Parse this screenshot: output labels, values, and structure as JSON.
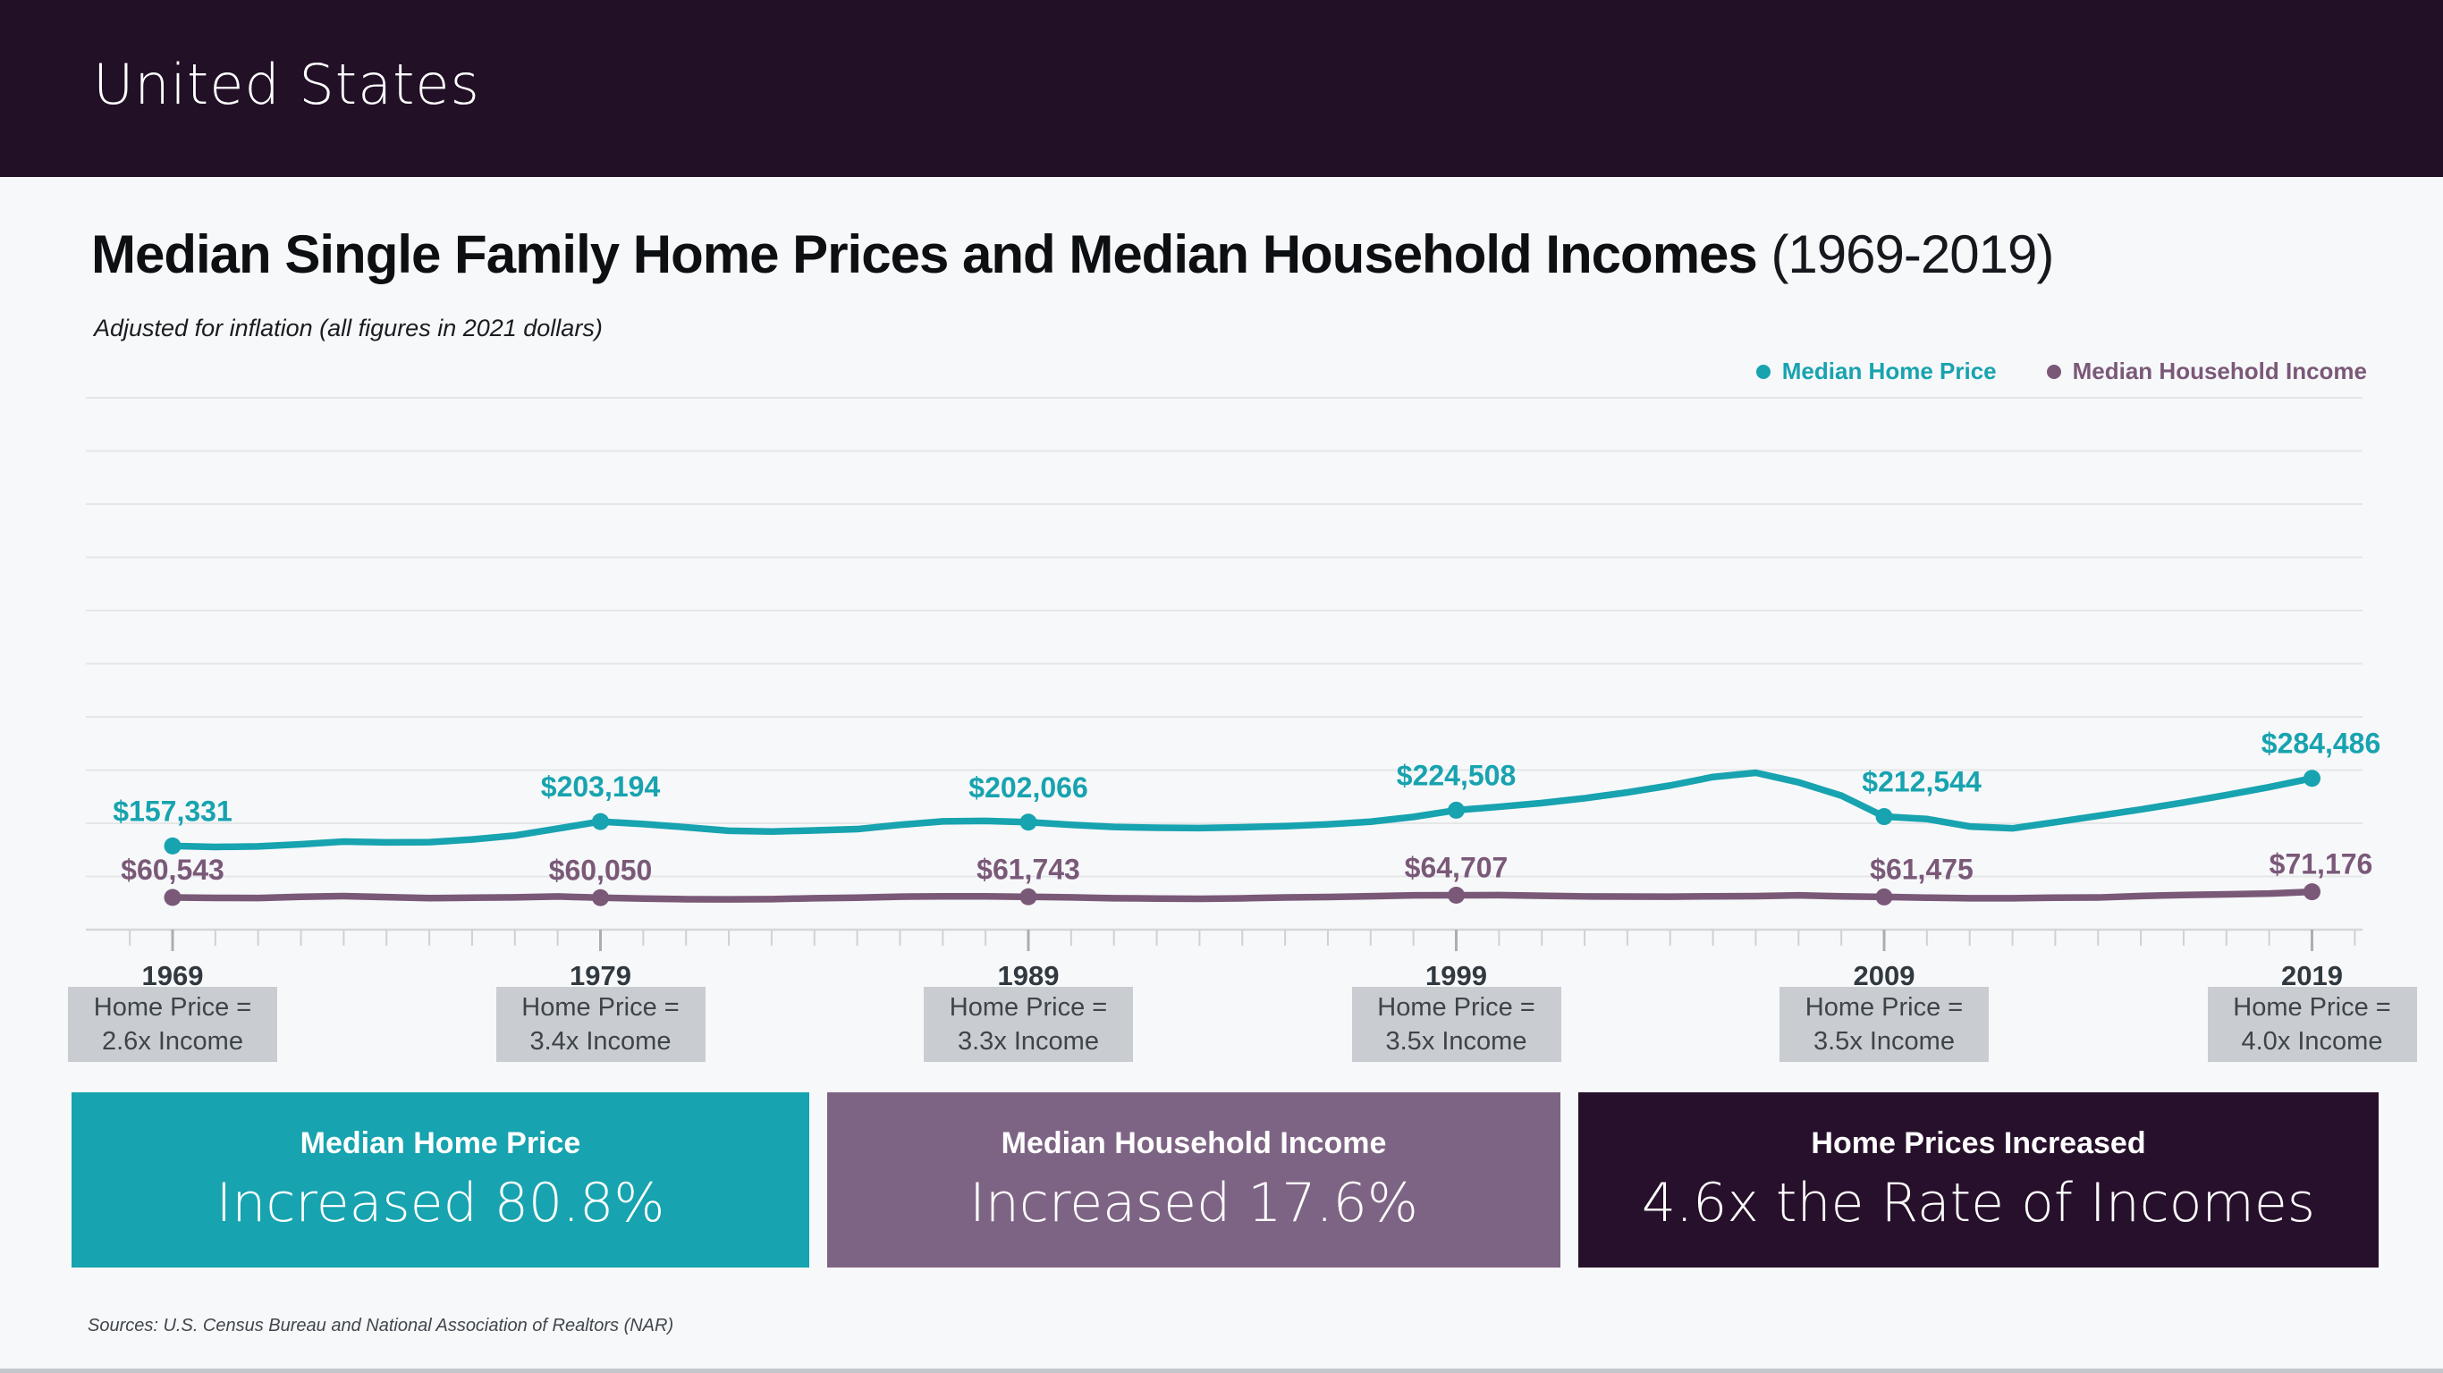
{
  "header": {
    "title": "United States"
  },
  "chart": {
    "title_bold": "Median Single Family Home Prices and Median Household Incomes",
    "title_period": " (1969-2019)",
    "subtitle": "Adjusted for inflation (all figures in 2021 dollars)",
    "legend": [
      {
        "label": "Median Home Price",
        "color": "#17a3af"
      },
      {
        "label": "Median Household Income",
        "color": "#7a5978"
      }
    ]
  },
  "chart_data": {
    "type": "line",
    "title": "Median Single Family Home Prices and Median Household Incomes (1969-2019)",
    "subtitle": "Adjusted for inflation (all figures in 2021 dollars)",
    "ylim": [
      0,
      1000000
    ],
    "gridline_interval": 100000,
    "grid": true,
    "legend_position": "top-right",
    "x": [
      1969,
      1970,
      1971,
      1972,
      1973,
      1974,
      1975,
      1976,
      1977,
      1978,
      1979,
      1980,
      1981,
      1982,
      1983,
      1984,
      1985,
      1986,
      1987,
      1988,
      1989,
      1990,
      1991,
      1992,
      1993,
      1994,
      1995,
      1996,
      1997,
      1998,
      1999,
      2000,
      2001,
      2002,
      2003,
      2004,
      2005,
      2006,
      2007,
      2008,
      2009,
      2010,
      2011,
      2012,
      2013,
      2014,
      2015,
      2016,
      2017,
      2018,
      2019
    ],
    "x_tick_labels": [
      1969,
      1979,
      1989,
      1999,
      2009,
      2019
    ],
    "series": [
      {
        "id": "home-price",
        "name": "Median Home Price",
        "color": "#17a3af",
        "label_dy": -28,
        "values": [
          157331,
          155500,
          156500,
          160500,
          165500,
          164000,
          164500,
          169500,
          177000,
          190000,
          203194,
          198500,
          192500,
          186000,
          184500,
          186500,
          189000,
          197000,
          203500,
          204500,
          202066,
          197000,
          193000,
          191500,
          191000,
          192500,
          194500,
          198000,
          203000,
          212000,
          224508,
          231000,
          238000,
          247000,
          258000,
          271000,
          287000,
          295000,
          277000,
          252000,
          212544,
          208000,
          194000,
          190500,
          202000,
          214000,
          226000,
          239000,
          253000,
          268000,
          284486
        ],
        "point_labels": [
          {
            "year": 1969,
            "label": "$157,331",
            "dx": 0
          },
          {
            "year": 1979,
            "label": "$203,194",
            "dx": 0
          },
          {
            "year": 1989,
            "label": "$202,066",
            "dx": 0
          },
          {
            "year": 1999,
            "label": "$224,508",
            "dx": 0
          },
          {
            "year": 2009,
            "label": "$212,544",
            "dx": 42
          },
          {
            "year": 2019,
            "label": "$284,486",
            "dx": 10
          }
        ]
      },
      {
        "id": "household-income",
        "name": "Median Household Income",
        "color": "#7a5978",
        "label_dy": -20,
        "values": [
          60543,
          59700,
          59400,
          61800,
          63100,
          61200,
          59300,
          60000,
          60700,
          62300,
          60050,
          58400,
          57200,
          57000,
          57400,
          59000,
          60000,
          62000,
          62600,
          62700,
          61743,
          60800,
          59100,
          58400,
          58000,
          58900,
          60600,
          61300,
          62800,
          64500,
          64707,
          64900,
          63600,
          62500,
          62200,
          62000,
          62700,
          63100,
          64400,
          62600,
          61475,
          60100,
          59000,
          59100,
          60100,
          60400,
          63300,
          65200,
          66400,
          67800,
          71176
        ],
        "point_labels": [
          {
            "year": 1969,
            "label": "$60,543",
            "dx": 0
          },
          {
            "year": 1979,
            "label": "$60,050",
            "dx": 0
          },
          {
            "year": 1989,
            "label": "$61,743",
            "dx": 0
          },
          {
            "year": 1999,
            "label": "$64,707",
            "dx": 0
          },
          {
            "year": 2009,
            "label": "$61,475",
            "dx": 42
          },
          {
            "year": 2019,
            "label": "$71,176",
            "dx": 10
          }
        ]
      }
    ],
    "colors": {
      "gridline": "#e4e6e8",
      "axis": "#d4d7da",
      "tick_minor": "#ced2d5",
      "tick_major": "#a9aeb3",
      "year_label": "#30393f"
    }
  },
  "multiple_boxes": [
    {
      "year": 1969,
      "line1": "Home Price =",
      "line2": "2.6x Income"
    },
    {
      "year": 1979,
      "line1": "Home Price =",
      "line2": "3.4x Income"
    },
    {
      "year": 1989,
      "line1": "Home Price =",
      "line2": "3.3x Income"
    },
    {
      "year": 1999,
      "line1": "Home Price =",
      "line2": "3.5x Income"
    },
    {
      "year": 2009,
      "line1": "Home Price =",
      "line2": "3.5x Income"
    },
    {
      "year": 2019,
      "line1": "Home Price =",
      "line2": "4.0x Income"
    }
  ],
  "stat_boxes": [
    {
      "title": "Median Home Price",
      "value": "Increased 80.8%",
      "bg": "#17a3af"
    },
    {
      "title": "Median Household Income",
      "value": "Increased 17.6%",
      "bg": "#7e6484"
    },
    {
      "title": "Home Prices Increased",
      "value": "4.6x the Rate of Incomes",
      "bg": "#27102b"
    }
  ],
  "source": "Sources: U.S. Census Bureau and National Association of Realtors (NAR)",
  "colors": {
    "background": "#f7f8fa",
    "header_bg": "#211026",
    "bottom_strip": "#c4c7cc"
  }
}
